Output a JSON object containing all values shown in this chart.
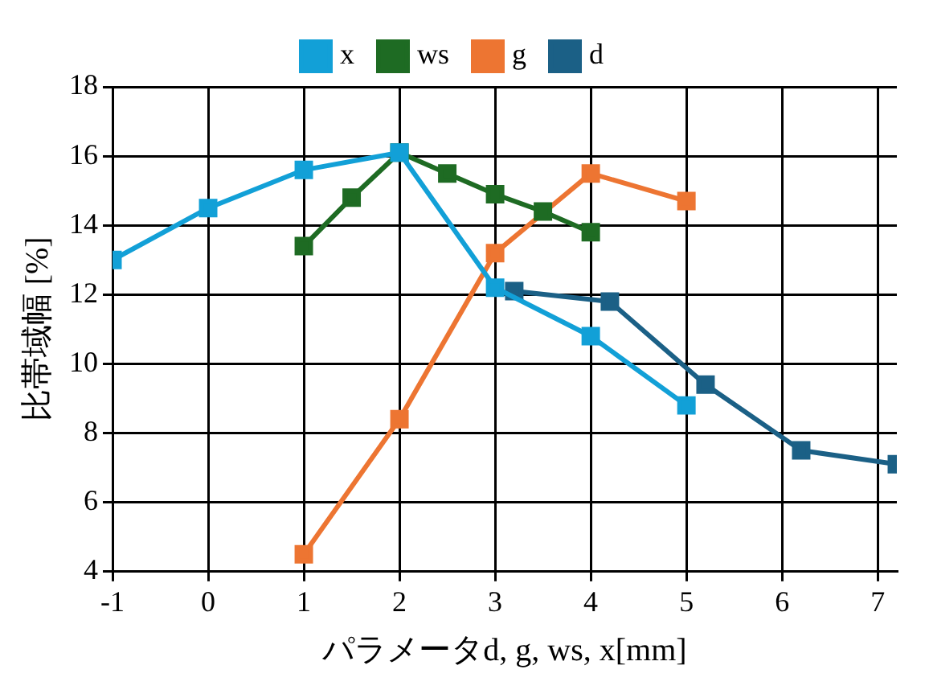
{
  "chart_data": {
    "type": "line",
    "xlabel": "パラメータd, g, ws, x[mm]",
    "ylabel": "比帯域幅 [%]",
    "xlim": [
      -1,
      7.2
    ],
    "xticks": [
      -1,
      0,
      1,
      2,
      3,
      4,
      5,
      6,
      7
    ],
    "ylim": [
      4,
      18
    ],
    "yticks": [
      4,
      6,
      8,
      10,
      12,
      14,
      16,
      18
    ],
    "grid": true,
    "legend": "top",
    "marker": "square",
    "line_style": "solid",
    "series": [
      {
        "name": "d",
        "color": "#1b6086",
        "x": [
          3.2,
          4.2,
          5.2,
          6.2,
          7.2
        ],
        "values": [
          12.1,
          11.8,
          9.4,
          7.5,
          7.1
        ]
      },
      {
        "name": "g",
        "color": "#ed7532",
        "x": [
          1,
          2,
          3,
          4,
          5
        ],
        "values": [
          4.5,
          8.4,
          13.2,
          15.5,
          14.7
        ]
      },
      {
        "name": "ws",
        "color": "#1e6b23",
        "x": [
          1,
          1.5,
          2,
          2.5,
          3,
          3.5,
          4
        ],
        "values": [
          13.4,
          14.8,
          16.1,
          15.5,
          14.9,
          14.4,
          13.8
        ]
      },
      {
        "name": "x",
        "color": "#12a0d7",
        "x": [
          -1,
          0,
          1,
          2,
          3,
          4,
          5
        ],
        "values": [
          13.0,
          14.5,
          15.6,
          16.1,
          12.2,
          10.8,
          8.8
        ]
      }
    ]
  }
}
